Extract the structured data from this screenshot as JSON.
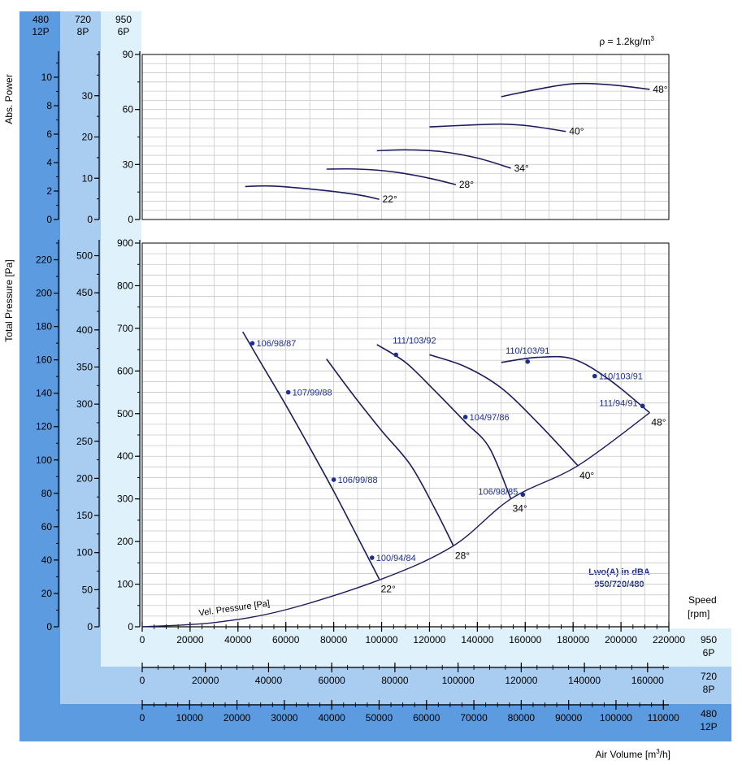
{
  "colors": {
    "band_dark": "#5d9be0",
    "band_mid": "#a9cdf1",
    "band_light": "#dff2fb",
    "curve": "#1c1c5e",
    "label_blue": "#1c2e8e",
    "grid": "#c8c8c8"
  },
  "density_note": "ρ = 1.2kg/m",
  "density_sup": "3",
  "speed_headers": [
    {
      "rpm": "480",
      "poles": "12P"
    },
    {
      "rpm": "720",
      "poles": "8P"
    },
    {
      "rpm": "950",
      "poles": "6P"
    }
  ],
  "labels": {
    "abs_power": "Abs. Power",
    "total_pressure": "Total Pressure [Pa]",
    "speed": "Speed",
    "rpm": "[rpm]",
    "air_volume": "Air Volume [m",
    "air_volume_sup": "3",
    "air_volume_end": "/h]",
    "vel_pressure": "Vel. Pressure [Pa]",
    "lwo_title": "Lwo(A) in dBA",
    "lwo_speeds": "950/720/480"
  },
  "axis_names": {
    "x950": {
      "rpm": "950",
      "poles": "6P"
    },
    "x720": {
      "rpm": "720",
      "poles": "8P"
    },
    "x480": {
      "rpm": "480",
      "poles": "12P"
    }
  },
  "chart_data": [
    {
      "type": "line",
      "title": "Abs. Power",
      "xlabel": "Air Volume [m3/h]",
      "x_range": [
        0,
        220000
      ],
      "y_axes": [
        {
          "speed": "950 6P",
          "range": [
            0,
            90
          ],
          "ticks": [
            0,
            30,
            60,
            90
          ]
        },
        {
          "speed": "720 8P",
          "range": [
            0,
            40
          ],
          "ticks": [
            0,
            10,
            20,
            30
          ]
        },
        {
          "speed": "480 12P",
          "range": [
            0,
            11.6
          ],
          "ticks": [
            0,
            2,
            4,
            6,
            8,
            10
          ]
        }
      ],
      "grid": true,
      "series": [
        {
          "name": "22°",
          "points": [
            [
              43000,
              18
            ],
            [
              55000,
              18.2
            ],
            [
              75000,
              16
            ],
            [
              90000,
              13.5
            ],
            [
              99000,
              11
            ]
          ]
        },
        {
          "name": "28°",
          "points": [
            [
              77000,
              27.5
            ],
            [
              90000,
              27.5
            ],
            [
              105000,
              26
            ],
            [
              120000,
              22.5
            ],
            [
              131000,
              19
            ]
          ]
        },
        {
          "name": "34°",
          "points": [
            [
              98000,
              37.5
            ],
            [
              110000,
              38
            ],
            [
              125000,
              37
            ],
            [
              140000,
              33.5
            ],
            [
              154000,
              28
            ]
          ]
        },
        {
          "name": "40°",
          "points": [
            [
              120000,
              50.5
            ],
            [
              137000,
              51.5
            ],
            [
              150000,
              52
            ],
            [
              162000,
              51
            ],
            [
              177000,
              48
            ]
          ]
        },
        {
          "name": "48°",
          "points": [
            [
              150000,
              67
            ],
            [
              165000,
              71
            ],
            [
              180000,
              74
            ],
            [
              195000,
              73.5
            ],
            [
              212000,
              71
            ]
          ]
        }
      ]
    },
    {
      "type": "line",
      "title": "Total Pressure [Pa]",
      "xlabel": "Air Volume [m3/h]",
      "x_axes": [
        {
          "speed": "950 6P",
          "range": [
            0,
            220000
          ],
          "ticks": [
            0,
            20000,
            40000,
            60000,
            80000,
            100000,
            120000,
            140000,
            160000,
            180000,
            200000,
            220000
          ]
        },
        {
          "speed": "720 8P",
          "range": [
            0,
            166737
          ],
          "ticks": [
            0,
            20000,
            40000,
            60000,
            80000,
            100000,
            120000,
            140000,
            160000
          ]
        },
        {
          "speed": "480 12P",
          "range": [
            0,
            111158
          ],
          "ticks": [
            0,
            10000,
            20000,
            30000,
            40000,
            50000,
            60000,
            70000,
            80000,
            90000,
            100000,
            110000
          ]
        }
      ],
      "y_axes": [
        {
          "speed": "950 6P",
          "range": [
            0,
            900
          ],
          "ticks": [
            0,
            100,
            200,
            300,
            400,
            500,
            600,
            700,
            800,
            900
          ]
        },
        {
          "speed": "720 8P",
          "range": [
            0,
            517
          ],
          "ticks": [
            0,
            50,
            100,
            150,
            200,
            250,
            300,
            350,
            400,
            450,
            500
          ]
        },
        {
          "speed": "480 12P",
          "range": [
            0,
            230
          ],
          "ticks": [
            0,
            20,
            40,
            60,
            80,
            100,
            120,
            140,
            160,
            180,
            200,
            220
          ]
        }
      ],
      "grid": true,
      "series": [
        {
          "name": "22°",
          "points": [
            [
              42000,
              692
            ],
            [
              50000,
              615
            ],
            [
              60000,
              520
            ],
            [
              70000,
              420
            ],
            [
              80000,
              318
            ],
            [
              90000,
              210
            ],
            [
              99000,
              112
            ]
          ]
        },
        {
          "name": "28°",
          "points": [
            [
              77000,
              628
            ],
            [
              88000,
              545
            ],
            [
              100000,
              460
            ],
            [
              112000,
              380
            ],
            [
              122000,
              280
            ],
            [
              130000,
              190
            ]
          ]
        },
        {
          "name": "34°",
          "points": [
            [
              98000,
              662
            ],
            [
              110000,
              620
            ],
            [
              122000,
              555
            ],
            [
              135000,
              480
            ],
            [
              145000,
              420
            ],
            [
              154000,
              300
            ]
          ]
        },
        {
          "name": "40°",
          "points": [
            [
              120000,
              638
            ],
            [
              135000,
              610
            ],
            [
              150000,
              560
            ],
            [
              165000,
              480
            ],
            [
              182000,
              378
            ]
          ]
        },
        {
          "name": "48°",
          "points": [
            [
              150000,
              620
            ],
            [
              165000,
              632
            ],
            [
              180000,
              628
            ],
            [
              195000,
              580
            ],
            [
              212000,
              502
            ]
          ]
        },
        {
          "name": "Vel. Pressure [Pa]",
          "points": [
            [
              0,
              0
            ],
            [
              30000,
              10
            ],
            [
              60000,
              40
            ],
            [
              100000,
              112
            ],
            [
              130000,
              190
            ],
            [
              154000,
              300
            ],
            [
              182000,
              378
            ],
            [
              212000,
              502
            ]
          ]
        }
      ],
      "annotations": [
        {
          "text": "106/98/87",
          "x": 46000,
          "y": 665
        },
        {
          "text": "107/99/88",
          "x": 61000,
          "y": 550
        },
        {
          "text": "106/99/88",
          "x": 80000,
          "y": 345
        },
        {
          "text": "100/94/84",
          "x": 96000,
          "y": 162
        },
        {
          "text": "111/103/92",
          "x": 106000,
          "y": 638
        },
        {
          "text": "104/97/86",
          "x": 135000,
          "y": 492
        },
        {
          "text": "106/98/85",
          "x": 159000,
          "y": 310
        },
        {
          "text": "110/103/91",
          "x": 161000,
          "y": 622
        },
        {
          "text": "110/103/91",
          "x": 189000,
          "y": 588
        },
        {
          "text": "111/94/91",
          "x": 209000,
          "y": 518
        }
      ],
      "end_labels": [
        "22°",
        "28°",
        "34°",
        "40°",
        "48°"
      ]
    }
  ]
}
